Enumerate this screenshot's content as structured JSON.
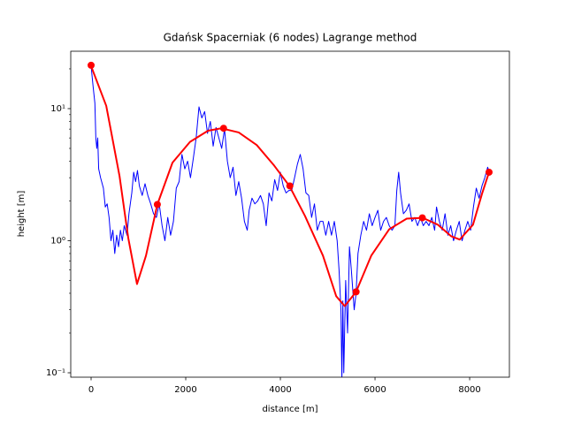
{
  "chart_data": {
    "type": "line",
    "title": "Gdańsk Spacerniak (6 nodes) Lagrange method",
    "xlabel": "distance [m]",
    "ylabel": "height [m]",
    "yscale": "log",
    "xlim": [
      -430,
      8840
    ],
    "ylim": [
      0.0926,
      27.2
    ],
    "xticks": [
      0,
      2000,
      4000,
      6000,
      8000
    ],
    "yticks": [
      {
        "value": 0.1,
        "label": "10⁻¹"
      },
      {
        "value": 1,
        "label": "10⁰"
      },
      {
        "value": 10,
        "label": "10¹"
      }
    ],
    "yminorticks": [
      0.2,
      0.3,
      0.4,
      0.5,
      0.6,
      0.7,
      0.8,
      0.9,
      2,
      3,
      4,
      5,
      6,
      7,
      8,
      9,
      20
    ],
    "series": [
      {
        "kind": "line",
        "color": "#0000ff",
        "linewidth": 1,
        "x": [
          0,
          40,
          80,
          100,
          120,
          140,
          160,
          200,
          260,
          300,
          340,
          380,
          420,
          460,
          500,
          540,
          580,
          620,
          660,
          700,
          760,
          800,
          860,
          900,
          940,
          980,
          1020,
          1080,
          1140,
          1200,
          1260,
          1320,
          1380,
          1440,
          1500,
          1560,
          1620,
          1680,
          1740,
          1800,
          1860,
          1920,
          1980,
          2040,
          2100,
          2160,
          2220,
          2280,
          2340,
          2400,
          2460,
          2520,
          2580,
          2640,
          2700,
          2760,
          2820,
          2880,
          2940,
          3000,
          3060,
          3120,
          3180,
          3240,
          3300,
          3340,
          3400,
          3460,
          3520,
          3580,
          3640,
          3700,
          3760,
          3820,
          3880,
          3940,
          4000,
          4060,
          4120,
          4180,
          4240,
          4300,
          4360,
          4420,
          4480,
          4540,
          4600,
          4660,
          4720,
          4780,
          4840,
          4900,
          4960,
          5020,
          5080,
          5140,
          5200,
          5240,
          5280,
          5300,
          5320,
          5340,
          5380,
          5420,
          5460,
          5500,
          5560,
          5600,
          5640,
          5700,
          5760,
          5820,
          5880,
          5940,
          6000,
          6060,
          6120,
          6180,
          6240,
          6300,
          6360,
          6420,
          6460,
          6500,
          6540,
          6600,
          6660,
          6720,
          6780,
          6840,
          6900,
          6960,
          7020,
          7080,
          7140,
          7200,
          7260,
          7300,
          7360,
          7420,
          7480,
          7540,
          7600,
          7660,
          7720,
          7780,
          7840,
          7900,
          7960,
          8020,
          8080,
          8140,
          8200,
          8260,
          8320,
          8380,
          8430
        ],
        "values": [
          21,
          15,
          11,
          6,
          5,
          6,
          3.5,
          3,
          2.5,
          1.8,
          1.9,
          1.5,
          1.0,
          1.2,
          0.8,
          1.1,
          0.9,
          1.2,
          1.0,
          1.3,
          1.1,
          1.6,
          2.3,
          3.3,
          2.8,
          3.4,
          2.6,
          2.2,
          2.7,
          2.2,
          1.9,
          1.6,
          1.5,
          1.9,
          1.3,
          1.0,
          1.5,
          1.1,
          1.4,
          2.5,
          2.8,
          4.5,
          3.5,
          4.0,
          3.0,
          4.2,
          6.0,
          10.3,
          8.5,
          9.5,
          6.5,
          8.0,
          5.2,
          7.2,
          6.0,
          5.0,
          7.0,
          4.0,
          3.0,
          3.6,
          2.2,
          2.8,
          2.1,
          1.4,
          1.2,
          1.7,
          2.1,
          1.9,
          2.0,
          2.2,
          1.9,
          1.3,
          2.3,
          2.0,
          2.9,
          2.4,
          3.3,
          2.6,
          2.3,
          2.4,
          2.4,
          3.0,
          3.8,
          4.5,
          3.5,
          2.3,
          2.2,
          1.5,
          1.9,
          1.2,
          1.4,
          1.4,
          1.1,
          1.4,
          1.1,
          1.4,
          1.0,
          0.6,
          0.3,
          0.09,
          0.35,
          0.1,
          0.5,
          0.2,
          0.9,
          0.6,
          0.3,
          0.4,
          0.8,
          1.1,
          1.4,
          1.2,
          1.6,
          1.3,
          1.5,
          1.7,
          1.2,
          1.4,
          1.5,
          1.3,
          1.2,
          1.3,
          2.4,
          3.3,
          2.3,
          1.6,
          1.7,
          1.9,
          1.4,
          1.5,
          1.3,
          1.5,
          1.3,
          1.4,
          1.3,
          1.5,
          1.2,
          1.8,
          1.4,
          1.2,
          1.6,
          1.1,
          1.3,
          1.0,
          1.2,
          1.4,
          1.0,
          1.2,
          1.4,
          1.2,
          1.8,
          2.5,
          2.1,
          2.6,
          3.0,
          3.6,
          3.2
        ]
      },
      {
        "kind": "line",
        "color": "#ff0000",
        "linewidth": 2,
        "x": [
          0,
          320,
          600,
          785,
          970,
          1160,
          1400,
          1720,
          2090,
          2470,
          2750,
          3120,
          3500,
          3870,
          4190,
          4520,
          4900,
          5180,
          5360,
          5600,
          5920,
          6300,
          6670,
          7010,
          7330,
          7610,
          7790,
          8070,
          8260,
          8410
        ],
        "values": [
          21,
          10.5,
          3.1,
          1.05,
          0.47,
          0.77,
          1.88,
          3.9,
          5.6,
          6.8,
          7.1,
          6.6,
          5.3,
          3.7,
          2.6,
          1.54,
          0.77,
          0.38,
          0.32,
          0.41,
          0.77,
          1.22,
          1.47,
          1.49,
          1.32,
          1.08,
          1.02,
          1.32,
          2.26,
          3.3
        ]
      },
      {
        "kind": "points",
        "color": "#ff0000",
        "x": [
          0,
          1400,
          2800,
          4200,
          5600,
          7000,
          8410
        ],
        "values": [
          21.3,
          1.88,
          7.1,
          2.6,
          0.41,
          1.49,
          3.3
        ]
      }
    ]
  }
}
